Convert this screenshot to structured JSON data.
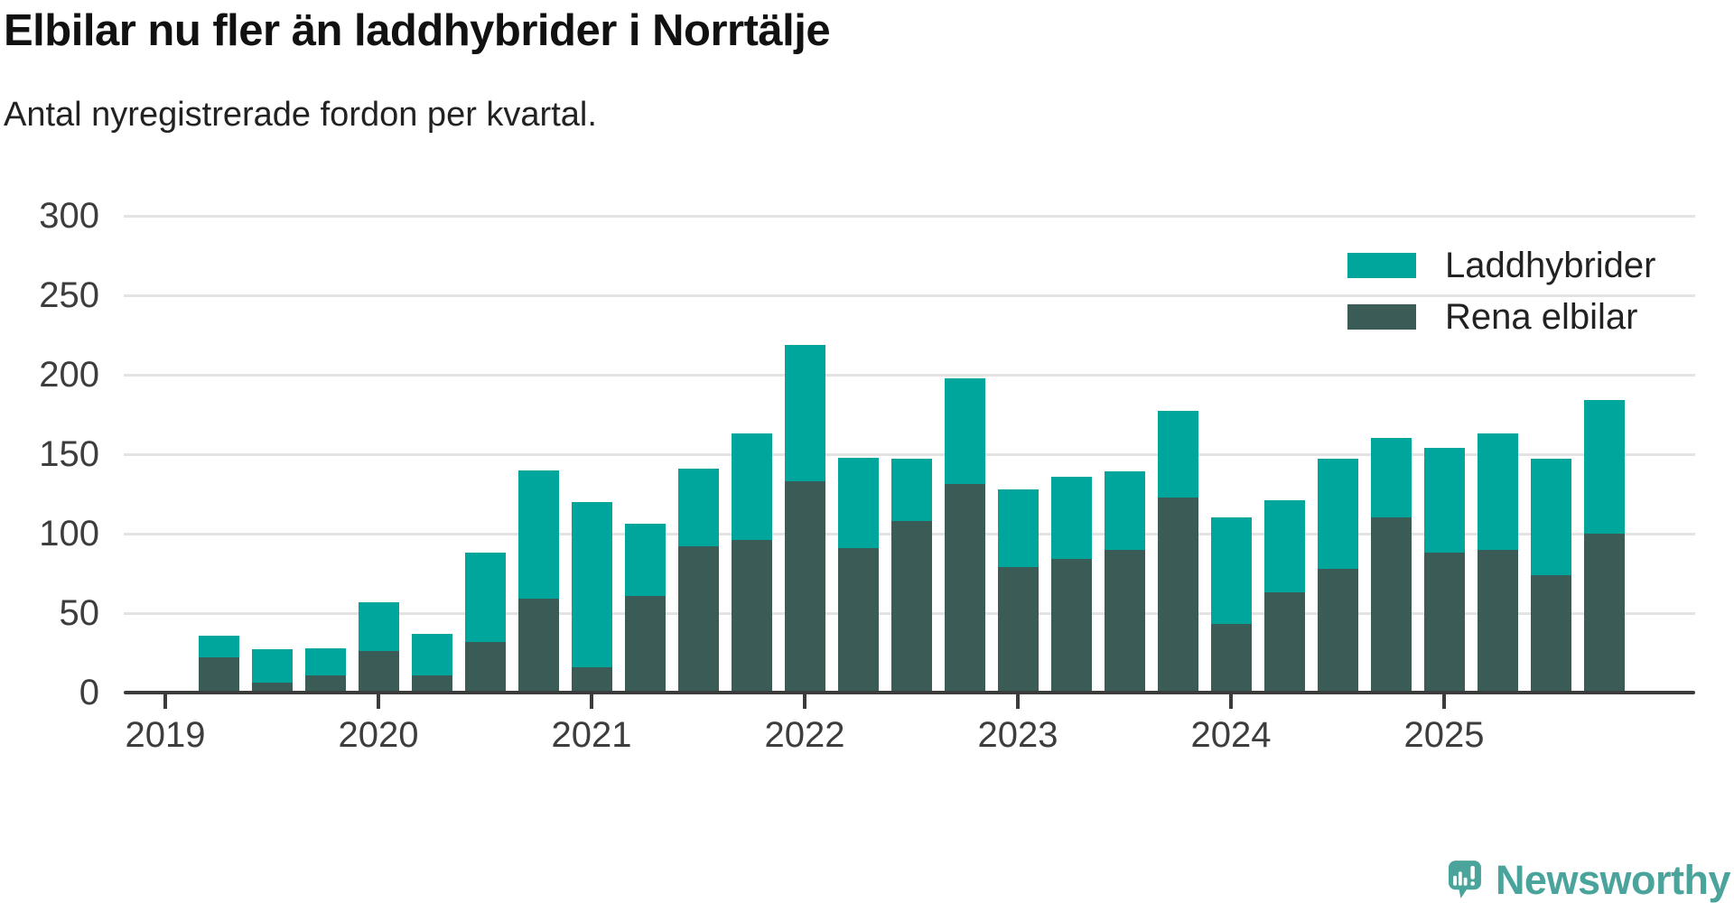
{
  "header": {
    "title": "Elbilar nu fler än laddhybrider i Norrtälje",
    "subtitle": "Antal nyregistrerade fordon per kvartal."
  },
  "legend": [
    {
      "label": "Laddhybrider",
      "color": "#00a59b"
    },
    {
      "label": "Rena elbilar",
      "color": "#3a5b56"
    }
  ],
  "footer": {
    "brand": "Newsworthy",
    "brand_color": "#4aa49b"
  },
  "chart_data": {
    "type": "bar",
    "stacked": true,
    "title": "Elbilar nu fler än laddhybrider i Norrtälje",
    "subtitle": "Antal nyregistrerade fordon per kvartal.",
    "xlabel": "",
    "ylabel": "",
    "ylim": [
      0,
      300
    ],
    "y_ticks": [
      0,
      50,
      100,
      150,
      200,
      250,
      300
    ],
    "grid": true,
    "legend_position": "top-right",
    "x_tick_labels": [
      "2019",
      "2020",
      "2021",
      "2022",
      "2023",
      "2024",
      "2025"
    ],
    "categories": [
      "2019 Q1",
      "2019 Q2",
      "2019 Q3",
      "2019 Q4",
      "2020 Q1",
      "2020 Q2",
      "2020 Q3",
      "2020 Q4",
      "2021 Q1",
      "2021 Q2",
      "2021 Q3",
      "2021 Q4",
      "2022 Q1",
      "2022 Q2",
      "2022 Q3",
      "2022 Q4",
      "2023 Q1",
      "2023 Q2",
      "2023 Q3",
      "2023 Q4",
      "2024 Q1",
      "2024 Q2",
      "2024 Q3",
      "2024 Q4",
      "2025 Q1",
      "2025 Q2",
      "2025 Q3",
      "2025 Q4"
    ],
    "series": [
      {
        "name": "Rena elbilar",
        "color": "#3a5b56",
        "values": [
          0,
          22,
          6,
          11,
          26,
          11,
          32,
          59,
          16,
          61,
          92,
          96,
          133,
          91,
          108,
          131,
          79,
          84,
          90,
          123,
          43,
          63,
          78,
          110,
          88,
          90,
          74,
          100
        ]
      },
      {
        "name": "Laddhybrider",
        "color": "#00a59b",
        "values": [
          0,
          14,
          21,
          17,
          31,
          26,
          56,
          81,
          104,
          45,
          49,
          67,
          86,
          57,
          39,
          67,
          49,
          52,
          49,
          54,
          67,
          58,
          69,
          50,
          66,
          73,
          73,
          84
        ]
      }
    ],
    "totals": [
      0,
      36,
      27,
      28,
      57,
      37,
      88,
      140,
      120,
      106,
      141,
      163,
      219,
      148,
      147,
      198,
      128,
      136,
      139,
      177,
      110,
      121,
      147,
      160,
      154,
      163,
      147,
      184
    ]
  }
}
